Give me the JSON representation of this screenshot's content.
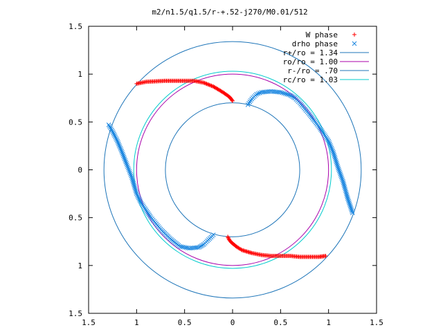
{
  "chart_data": {
    "type": "scatter",
    "title": "m2/n1.5/q1.5/r-+.52-j270/M0.01/512",
    "xlabel": "",
    "ylabel": "",
    "xlim": [
      -1.5,
      1.5
    ],
    "ylim": [
      -1.5,
      1.5
    ],
    "xticks": [
      -1.5,
      -1,
      -0.5,
      0,
      0.5,
      1,
      1.5
    ],
    "yticks": [
      -1.5,
      -1,
      -0.5,
      0,
      0.5,
      1,
      1.5
    ],
    "xtick_labels": [
      "1.5",
      "1",
      "0.5",
      "0",
      "0.5",
      "1",
      "1.5"
    ],
    "ytick_labels": [
      "1.5",
      "1",
      "0.5",
      "0",
      "0.5",
      "1",
      "1.5"
    ],
    "grid": false,
    "legend_position": "top-right",
    "circles": [
      {
        "name": "r+/ro = 1.34",
        "radius": 1.34,
        "color": "#1c74b8"
      },
      {
        "name": "ro/ro = 1.00",
        "radius": 1.0,
        "color": "#aa00aa"
      },
      {
        "name": "r-/ro = .70",
        "radius": 0.7,
        "color": "#1c74b8"
      },
      {
        "name": "rc/ro = 1.03",
        "radius": 1.03,
        "color": "#00cccc"
      }
    ],
    "series": [
      {
        "name": "W phase",
        "marker": "plus",
        "color": "#ff0000",
        "curves": [
          [
            [
              -1.0,
              0.9
            ],
            [
              -0.9,
              0.92
            ],
            [
              -0.8,
              0.925
            ],
            [
              -0.7,
              0.93
            ],
            [
              -0.6,
              0.93
            ],
            [
              -0.5,
              0.93
            ],
            [
              -0.4,
              0.93
            ],
            [
              -0.3,
              0.91
            ],
            [
              -0.2,
              0.87
            ],
            [
              -0.1,
              0.81
            ],
            [
              -0.03,
              0.76
            ],
            [
              0.0,
              0.72
            ]
          ],
          [
            [
              -0.05,
              -0.7
            ],
            [
              -0.03,
              -0.74
            ],
            [
              0.0,
              -0.77
            ],
            [
              0.05,
              -0.81
            ],
            [
              0.1,
              -0.84
            ],
            [
              0.2,
              -0.87
            ],
            [
              0.3,
              -0.89
            ],
            [
              0.4,
              -0.9
            ],
            [
              0.5,
              -0.9
            ],
            [
              0.6,
              -0.9
            ],
            [
              0.7,
              -0.91
            ],
            [
              0.8,
              -0.91
            ],
            [
              0.9,
              -0.91
            ],
            [
              0.97,
              -0.9
            ]
          ]
        ]
      },
      {
        "name": "drho phase",
        "marker": "x",
        "color": "#1a86e0",
        "curves": [
          [
            [
              0.16,
              0.68
            ],
            [
              0.2,
              0.74
            ],
            [
              0.25,
              0.79
            ],
            [
              0.3,
              0.81
            ],
            [
              0.4,
              0.82
            ],
            [
              0.5,
              0.81
            ],
            [
              0.6,
              0.78
            ],
            [
              0.65,
              0.75
            ],
            [
              0.7,
              0.7
            ],
            [
              0.8,
              0.58
            ],
            [
              0.9,
              0.45
            ],
            [
              1.0,
              0.3
            ],
            [
              1.05,
              0.18
            ],
            [
              1.1,
              0.02
            ],
            [
              1.15,
              -0.12
            ],
            [
              1.2,
              -0.3
            ],
            [
              1.25,
              -0.45
            ]
          ],
          [
            [
              -0.2,
              -0.68
            ],
            [
              -0.25,
              -0.73
            ],
            [
              -0.3,
              -0.78
            ],
            [
              -0.35,
              -0.81
            ],
            [
              -0.45,
              -0.82
            ],
            [
              -0.55,
              -0.8
            ],
            [
              -0.65,
              -0.72
            ],
            [
              -0.75,
              -0.62
            ],
            [
              -0.85,
              -0.5
            ],
            [
              -0.95,
              -0.35
            ],
            [
              -1.0,
              -0.25
            ],
            [
              -1.05,
              -0.08
            ],
            [
              -1.1,
              0.05
            ],
            [
              -1.15,
              0.18
            ],
            [
              -1.2,
              0.3
            ],
            [
              -1.25,
              0.4
            ],
            [
              -1.29,
              0.47
            ]
          ]
        ]
      }
    ]
  }
}
